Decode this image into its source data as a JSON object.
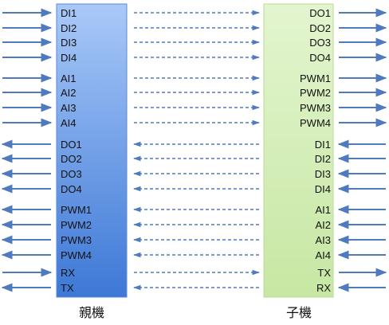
{
  "colors": {
    "parent_block": "#6f9fe8",
    "child_block": "#d9f0bd",
    "arrow": "#4f7ac0",
    "dashed": "#4f7ac0"
  },
  "parent": {
    "caption": "親機",
    "signals": [
      {
        "label": "DI1",
        "dir": "in"
      },
      {
        "label": "DI2",
        "dir": "in"
      },
      {
        "label": "DI3",
        "dir": "in"
      },
      {
        "label": "DI4",
        "dir": "in"
      },
      {
        "label": "AI1",
        "dir": "in"
      },
      {
        "label": "AI2",
        "dir": "in"
      },
      {
        "label": "AI3",
        "dir": "in"
      },
      {
        "label": "AI4",
        "dir": "in"
      },
      {
        "label": "DO1",
        "dir": "out"
      },
      {
        "label": "DO2",
        "dir": "out"
      },
      {
        "label": "DO3",
        "dir": "out"
      },
      {
        "label": "DO4",
        "dir": "out"
      },
      {
        "label": "PWM1",
        "dir": "out"
      },
      {
        "label": "PWM2",
        "dir": "out"
      },
      {
        "label": "PWM3",
        "dir": "out"
      },
      {
        "label": "PWM4",
        "dir": "out"
      },
      {
        "label": "RX",
        "dir": "in"
      },
      {
        "label": "TX",
        "dir": "out"
      }
    ]
  },
  "child": {
    "caption": "子機",
    "signals": [
      {
        "label": "DO1",
        "dir": "out"
      },
      {
        "label": "DO2",
        "dir": "out"
      },
      {
        "label": "DO3",
        "dir": "out"
      },
      {
        "label": "DO4",
        "dir": "out"
      },
      {
        "label": "PWM1",
        "dir": "out"
      },
      {
        "label": "PWM2",
        "dir": "out"
      },
      {
        "label": "PWM3",
        "dir": "out"
      },
      {
        "label": "PWM4",
        "dir": "out"
      },
      {
        "label": "DI1",
        "dir": "in"
      },
      {
        "label": "DI2",
        "dir": "in"
      },
      {
        "label": "DI3",
        "dir": "in"
      },
      {
        "label": "DI4",
        "dir": "in"
      },
      {
        "label": "AI1",
        "dir": "in"
      },
      {
        "label": "AI2",
        "dir": "in"
      },
      {
        "label": "AI3",
        "dir": "in"
      },
      {
        "label": "AI4",
        "dir": "in"
      },
      {
        "label": "TX",
        "dir": "out"
      },
      {
        "label": "RX",
        "dir": "in"
      }
    ]
  },
  "links": [
    {
      "dir": "right"
    },
    {
      "dir": "right"
    },
    {
      "dir": "right"
    },
    {
      "dir": "right"
    },
    {
      "dir": "right"
    },
    {
      "dir": "right"
    },
    {
      "dir": "right"
    },
    {
      "dir": "right"
    },
    {
      "dir": "left"
    },
    {
      "dir": "left"
    },
    {
      "dir": "left"
    },
    {
      "dir": "left"
    },
    {
      "dir": "left"
    },
    {
      "dir": "left"
    },
    {
      "dir": "left"
    },
    {
      "dir": "left"
    },
    {
      "dir": "right"
    },
    {
      "dir": "left"
    }
  ]
}
